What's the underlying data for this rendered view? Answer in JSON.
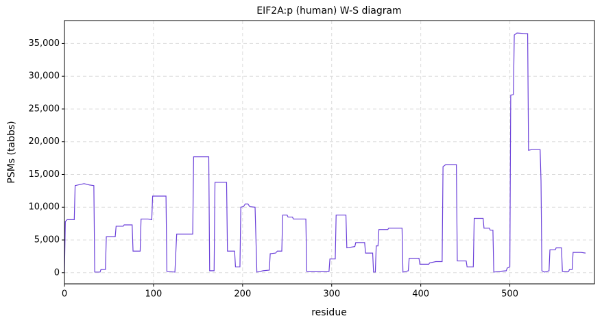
{
  "chart_data": {
    "type": "line",
    "title": "EIF2A:p (human) W-S diagram",
    "x_label": "residue",
    "y_label": "PSMs (tabbs)",
    "x": [
      0,
      1,
      3,
      11,
      12,
      22,
      28,
      33,
      34,
      40,
      41,
      46,
      47,
      57,
      58,
      66,
      67,
      76,
      77,
      85,
      86,
      94,
      98,
      99,
      114,
      115,
      124,
      126,
      144,
      145,
      155,
      162,
      163,
      168,
      169,
      182,
      183,
      191,
      192,
      197,
      198,
      201,
      203,
      206,
      208,
      214,
      216,
      223,
      230,
      231,
      237,
      239,
      244,
      245,
      250,
      251,
      256,
      257,
      271,
      272,
      297,
      298,
      304,
      305,
      316,
      317,
      326,
      327,
      337,
      338,
      346,
      347,
      349,
      350,
      352,
      353,
      363,
      364,
      379,
      380,
      386,
      387,
      398,
      399,
      409,
      410,
      417,
      424,
      425,
      428,
      440,
      441,
      451,
      452,
      459,
      460,
      470,
      471,
      477,
      478,
      481,
      482,
      488,
      496,
      497,
      500,
      501,
      504,
      505,
      508,
      519,
      520,
      521,
      525,
      534,
      535,
      536,
      539,
      544,
      545,
      551,
      552,
      558,
      559,
      566,
      567,
      570,
      571,
      580,
      585
    ],
    "series": [
      {
        "name": "PSMs",
        "color": "#6a3fd9",
        "values": [
          0,
          7800,
          8100,
          8100,
          13300,
          13600,
          13400,
          13300,
          100,
          100,
          500,
          500,
          5500,
          5500,
          7100,
          7100,
          7300,
          7300,
          3300,
          3300,
          8200,
          8200,
          8100,
          11700,
          11700,
          200,
          100,
          5900,
          5900,
          17700,
          17700,
          17700,
          300,
          300,
          13800,
          13800,
          3300,
          3300,
          900,
          900,
          10000,
          10100,
          10500,
          10500,
          10100,
          10000,
          100,
          300,
          400,
          2900,
          3000,
          3300,
          3300,
          8800,
          8800,
          8500,
          8500,
          8200,
          8200,
          200,
          200,
          2100,
          2100,
          8800,
          8800,
          3800,
          4000,
          4600,
          4600,
          3000,
          3000,
          100,
          100,
          4100,
          4100,
          6600,
          6600,
          6800,
          6800,
          100,
          300,
          2200,
          2200,
          1300,
          1300,
          1500,
          1700,
          1700,
          16200,
          16500,
          16500,
          1800,
          1800,
          900,
          900,
          8300,
          8300,
          6800,
          6800,
          6500,
          6500,
          100,
          200,
          300,
          700,
          900,
          27100,
          27200,
          36300,
          36600,
          36500,
          36500,
          18700,
          18800,
          18800,
          14000,
          300,
          100,
          300,
          3500,
          3500,
          3800,
          3800,
          200,
          200,
          500,
          500,
          3100,
          3100,
          3000
        ]
      }
    ],
    "xlim": [
      0,
      595
    ],
    "ylim": [
      -1700,
      38500
    ],
    "xticks": [
      0,
      100,
      200,
      300,
      400,
      500
    ],
    "yticks": [
      0,
      {
        "value": 5000,
        "label": "5,000"
      },
      {
        "value": 10000,
        "label": "10,000"
      },
      {
        "value": 15000,
        "label": "15,000"
      },
      {
        "value": 20000,
        "label": "20,000"
      },
      {
        "value": 25000,
        "label": "25,000"
      },
      {
        "value": 30000,
        "label": "30,000"
      },
      {
        "value": 35000,
        "label": "35,000"
      }
    ],
    "grid": true
  }
}
